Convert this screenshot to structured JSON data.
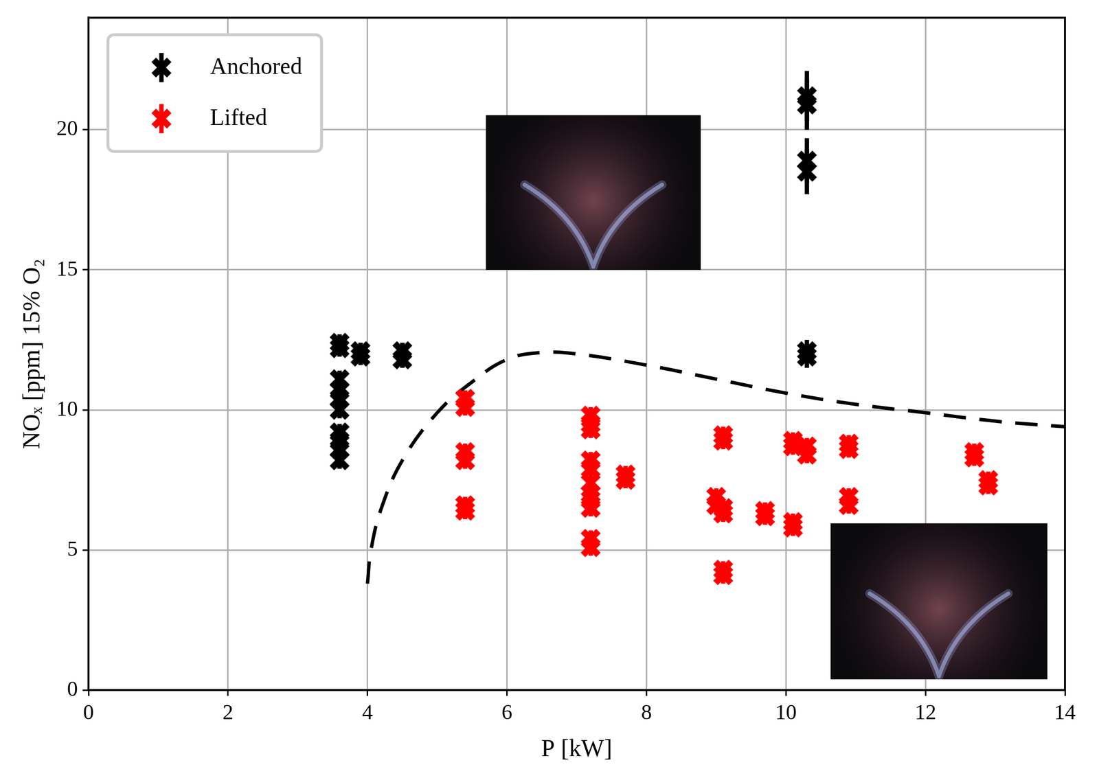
{
  "chart_data": {
    "type": "scatter",
    "x_label": "P [kW]",
    "y_label": "NOₓ [ppm] 15% O₂",
    "xlim": [
      0,
      14
    ],
    "xticks": [
      0,
      2,
      4,
      6,
      8,
      10,
      12,
      14
    ],
    "ylim": [
      0,
      24
    ],
    "yticks": [
      0,
      5,
      10,
      15,
      20
    ],
    "grid": true,
    "legend": "upper left",
    "series": [
      {
        "name": "Anchored",
        "color": "#000000",
        "marker": "X",
        "x": [
          3.6,
          3.6,
          3.6,
          3.6,
          3.6,
          3.6,
          3.6,
          3.6,
          3.6,
          3.6,
          3.9,
          3.9,
          4.5,
          4.5,
          10.3,
          10.3,
          10.3,
          10.3,
          10.3,
          10.3
        ],
        "values": [
          12.4,
          12.2,
          11.1,
          10.7,
          10.4,
          10.0,
          9.2,
          8.9,
          8.6,
          8.2,
          12.1,
          11.9,
          12.1,
          11.8,
          21.2,
          20.9,
          18.9,
          18.5,
          12.1,
          11.9
        ],
        "errors": [
          0.3,
          0.3,
          0.3,
          0.3,
          0.3,
          0.3,
          0.3,
          0.3,
          0.3,
          0.3,
          0.3,
          0.3,
          0.3,
          0.3,
          0.9,
          0.9,
          0.8,
          0.8,
          0.4,
          0.4
        ]
      },
      {
        "name": "Lifted",
        "color": "#ff0000",
        "marker": "X",
        "x": [
          5.4,
          5.4,
          5.4,
          5.4,
          5.4,
          5.4,
          7.2,
          7.2,
          7.2,
          7.2,
          7.2,
          7.2,
          7.2,
          7.2,
          7.2,
          7.2,
          7.2,
          7.7,
          7.7,
          9.0,
          9.0,
          9.1,
          9.1,
          9.1,
          9.1,
          9.1,
          9.1,
          9.7,
          9.7,
          10.1,
          10.1,
          10.1,
          10.1,
          10.3,
          10.3,
          10.9,
          10.9,
          10.9,
          10.9,
          12.7,
          12.7,
          12.9,
          12.9
        ],
        "values": [
          10.4,
          10.1,
          8.5,
          8.2,
          6.6,
          6.4,
          9.8,
          9.5,
          9.3,
          8.2,
          7.9,
          7.4,
          7.0,
          6.8,
          6.5,
          5.4,
          5.1,
          7.7,
          7.5,
          6.9,
          6.6,
          9.1,
          8.9,
          6.5,
          6.3,
          4.3,
          4.1,
          6.4,
          6.2,
          8.9,
          8.7,
          6.0,
          5.8,
          8.7,
          8.4,
          8.8,
          8.6,
          6.9,
          6.6,
          8.5,
          8.3,
          7.5,
          7.3
        ],
        "errors": [
          0.3,
          0.3,
          0.3,
          0.3,
          0.3,
          0.3,
          0.3,
          0.3,
          0.3,
          0.3,
          0.3,
          0.3,
          0.3,
          0.3,
          0.3,
          0.3,
          0.3,
          0.3,
          0.3,
          0.3,
          0.3,
          0.3,
          0.3,
          0.3,
          0.3,
          0.3,
          0.3,
          0.3,
          0.3,
          0.3,
          0.3,
          0.3,
          0.3,
          0.3,
          0.3,
          0.3,
          0.3,
          0.3,
          0.3,
          0.3,
          0.3,
          0.3,
          0.3
        ]
      },
      {
        "type": "line",
        "color": "#000000",
        "line_style": "dashed",
        "x": [
          4.0,
          4.05,
          4.2,
          4.5,
          5.0,
          5.5,
          6.0,
          6.5,
          7.0,
          8.0,
          9.0,
          10.0,
          11.0,
          12.0,
          13.0,
          14.0
        ],
        "values": [
          3.8,
          5.0,
          6.5,
          8.2,
          9.9,
          11.0,
          11.8,
          12.05,
          12.0,
          11.6,
          11.1,
          10.6,
          10.2,
          9.9,
          9.6,
          9.4
        ]
      }
    ]
  }
}
